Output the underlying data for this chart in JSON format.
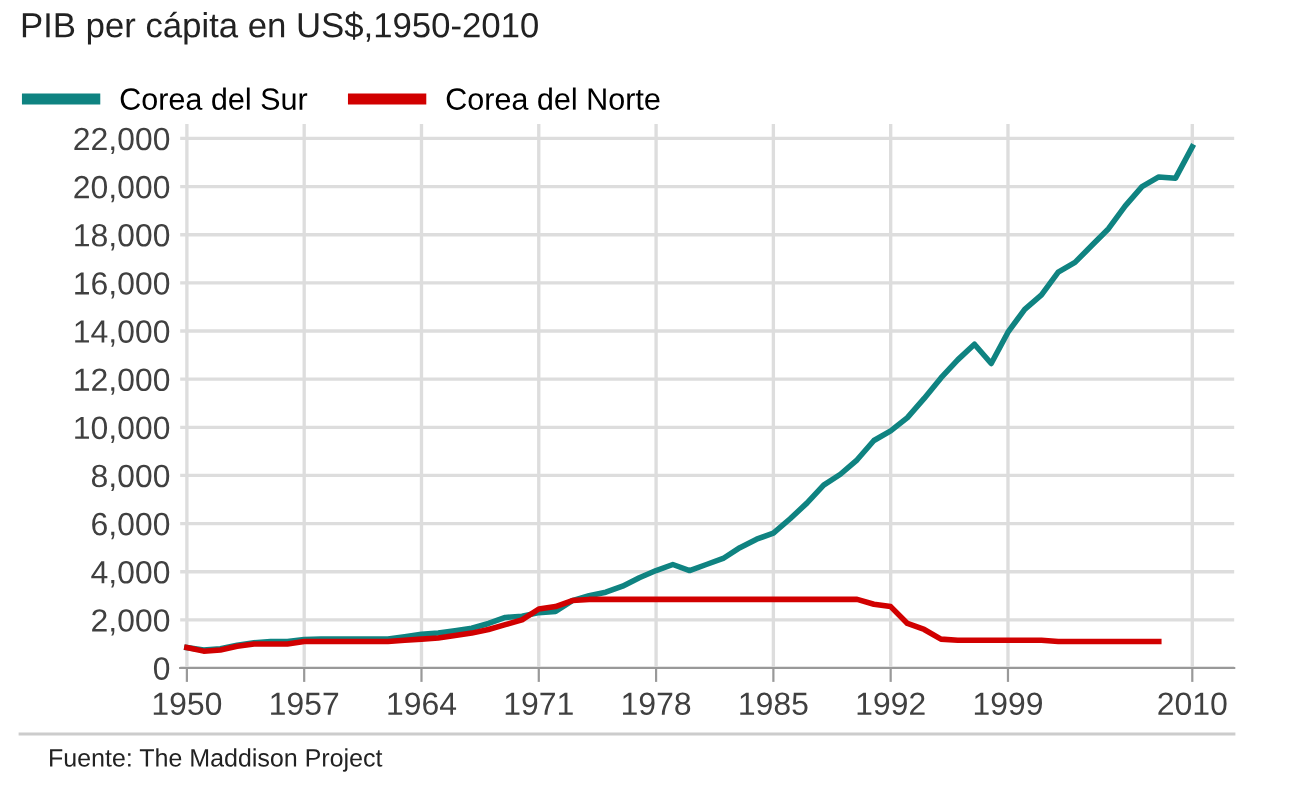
{
  "chart_data": {
    "type": "line",
    "title": "PIB per cápita en US$,1950-2010",
    "annotations": [
      "Fuente: The Maddison Project"
    ],
    "x": [
      1950,
      1951,
      1952,
      1953,
      1954,
      1955,
      1956,
      1957,
      1958,
      1959,
      1960,
      1961,
      1962,
      1963,
      1964,
      1965,
      1966,
      1967,
      1968,
      1969,
      1970,
      1971,
      1972,
      1973,
      1974,
      1975,
      1976,
      1977,
      1978,
      1979,
      1980,
      1981,
      1982,
      1983,
      1984,
      1985,
      1986,
      1987,
      1988,
      1989,
      1990,
      1991,
      1992,
      1993,
      1994,
      1995,
      1996,
      1997,
      1998,
      1999,
      2000,
      2001,
      2002,
      2003,
      2004,
      2005,
      2006,
      2007,
      2008,
      2009,
      2010
    ],
    "series": [
      {
        "name": "Corea del Sur",
        "color": "#0f8381",
        "values": [
          850,
          750,
          800,
          950,
          1050,
          1100,
          1100,
          1180,
          1200,
          1200,
          1200,
          1200,
          1200,
          1300,
          1400,
          1450,
          1550,
          1650,
          1850,
          2100,
          2150,
          2300,
          2350,
          2800,
          3000,
          3150,
          3400,
          3750,
          4050,
          4300,
          4050,
          4300,
          4550,
          5000,
          5350,
          5600,
          6200,
          6850,
          7600,
          8050,
          8650,
          9450,
          9850,
          10400,
          11200,
          12050,
          12800,
          13450,
          12650,
          13950,
          14900,
          15500,
          16450,
          16850,
          17550,
          18250,
          19200,
          20000,
          20400,
          20350,
          21650
        ]
      },
      {
        "name": "Corea del Norte",
        "color": "#d10000",
        "values": [
          850,
          700,
          750,
          900,
          1000,
          1000,
          1000,
          1100,
          1100,
          1100,
          1100,
          1100,
          1100,
          1150,
          1200,
          1250,
          1350,
          1450,
          1600,
          1800,
          2000,
          2450,
          2550,
          2800,
          2850,
          2850,
          2850,
          2850,
          2850,
          2850,
          2850,
          2850,
          2850,
          2850,
          2850,
          2850,
          2850,
          2850,
          2850,
          2850,
          2850,
          2650,
          2550,
          1850,
          1600,
          1200,
          1150,
          1150,
          1150,
          1150,
          1150,
          1150,
          1100,
          1100,
          1100,
          1100,
          1100,
          1100,
          1100,
          null,
          null
        ]
      }
    ],
    "xlim": [
      1949.6,
      2012.5
    ],
    "xticks": [
      1950,
      1957,
      1964,
      1971,
      1978,
      1985,
      1992,
      1999,
      2010
    ],
    "ylim": [
      0,
      22600
    ],
    "yticks": [
      0,
      {
        "value": 2000,
        "label": "2,000"
      },
      {
        "value": 4000,
        "label": "4,000"
      },
      {
        "value": 6000,
        "label": "6,000"
      },
      {
        "value": 8000,
        "label": "8,000"
      },
      {
        "value": 10000,
        "label": "10,000"
      },
      {
        "value": 12000,
        "label": "12,000"
      },
      {
        "value": 14000,
        "label": "14,000"
      },
      {
        "value": 16000,
        "label": "16,000"
      },
      {
        "value": 18000,
        "label": "18,000"
      },
      {
        "value": 20000,
        "label": "20,000"
      },
      {
        "value": 22000,
        "label": "22,000"
      }
    ],
    "grid": true,
    "legend": "top left",
    "marker": "none",
    "line_style": "solid"
  }
}
